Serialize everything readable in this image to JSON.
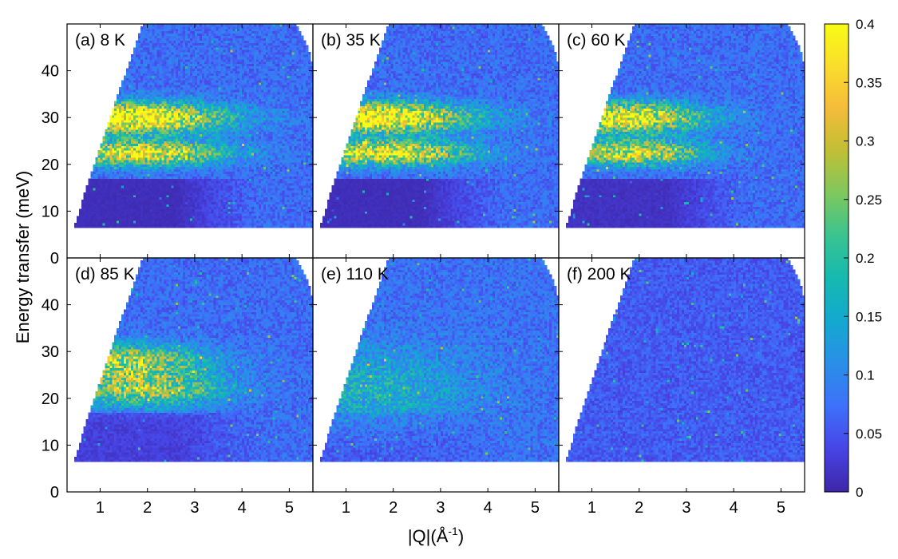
{
  "chart_data": {
    "type": "heatmap",
    "title": "",
    "xlabel": "|Q|(Å",
    "xlabel_superscript": "-1",
    "xlabel_end": ")",
    "ylabel": "Energy  transfer (meV)",
    "xlim": [
      0.3,
      5.5
    ],
    "ylim": [
      0,
      50
    ],
    "xticks": [
      1,
      2,
      3,
      4,
      5
    ],
    "yticks": [
      0,
      10,
      20,
      30,
      40
    ],
    "grid": false,
    "layout": {
      "rows": 2,
      "cols": 3
    },
    "colormap": {
      "name": "parula",
      "range": [
        0,
        0.4
      ],
      "ticks": [
        0,
        0.05,
        0.1,
        0.15,
        0.2,
        0.25,
        0.3,
        0.35,
        0.4
      ],
      "stops": [
        "#3e26a8",
        "#4744e5",
        "#3e70fa",
        "#2a8ee8",
        "#14a8d0",
        "#14b9b0",
        "#38c391",
        "#7dc85e",
        "#c0bf35",
        "#f4bb3a",
        "#fadd2c",
        "#f9fb15"
      ]
    },
    "coverage": {
      "emin": 6.5,
      "q_at_emin": 0.45,
      "q_at_emax": 1.9,
      "emax": 50,
      "qmax_low": 5.5,
      "qmax_high": 5.15
    },
    "panels": [
      {
        "label": "(a)",
        "temperature": "8 K",
        "features": [
          {
            "e_center": 30,
            "e_width": 2.2,
            "q_center": 1.6,
            "q_width": 1.4,
            "amplitude": 0.36
          },
          {
            "e_center": 22.5,
            "e_width": 1.8,
            "q_center": 1.9,
            "q_width": 1.2,
            "amplitude": 0.3
          }
        ],
        "background": 0.07,
        "low_e_intensity": 0.01
      },
      {
        "label": "(b)",
        "temperature": "35 K",
        "features": [
          {
            "e_center": 30,
            "e_width": 2.2,
            "q_center": 1.6,
            "q_width": 1.4,
            "amplitude": 0.35
          },
          {
            "e_center": 22.5,
            "e_width": 1.8,
            "q_center": 1.9,
            "q_width": 1.2,
            "amplitude": 0.29
          }
        ],
        "background": 0.07,
        "low_e_intensity": 0.01
      },
      {
        "label": "(c)",
        "temperature": "60 K",
        "features": [
          {
            "e_center": 30,
            "e_width": 2.2,
            "q_center": 1.6,
            "q_width": 1.2,
            "amplitude": 0.32
          },
          {
            "e_center": 22.5,
            "e_width": 1.8,
            "q_center": 1.9,
            "q_width": 1.0,
            "amplitude": 0.27
          }
        ],
        "background": 0.07,
        "low_e_intensity": 0.015
      },
      {
        "label": "(d)",
        "temperature": "85 K",
        "features": [
          {
            "e_center": 28,
            "e_width": 2.5,
            "q_center": 1.5,
            "q_width": 1.2,
            "amplitude": 0.22
          },
          {
            "e_center": 22,
            "e_width": 2.5,
            "q_center": 1.9,
            "q_width": 1.2,
            "amplitude": 0.2
          }
        ],
        "background": 0.07,
        "low_e_intensity": 0.03
      },
      {
        "label": "(e)",
        "temperature": "110 K",
        "features": [
          {
            "e_center": 22,
            "e_width": 6,
            "q_center": 1.5,
            "q_width": 1.5,
            "amplitude": 0.09
          }
        ],
        "background": 0.075,
        "low_e_intensity": 0.05
      },
      {
        "label": "(f)",
        "temperature": "200 K",
        "features": [],
        "background": 0.055,
        "low_e_intensity": 0.055
      }
    ]
  }
}
